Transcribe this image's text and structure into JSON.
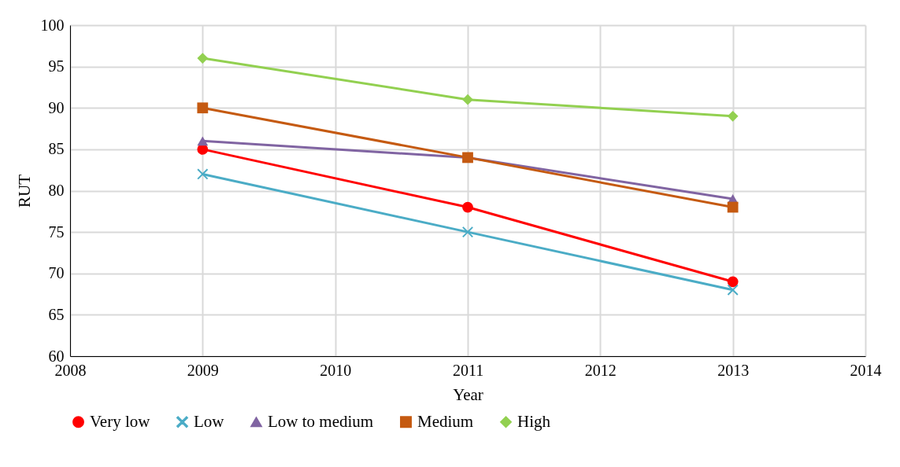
{
  "chart_data": {
    "type": "line",
    "xlabel": "Year",
    "ylabel": "RUT",
    "x": [
      2009,
      2011,
      2013
    ],
    "xlim": [
      2008,
      2014
    ],
    "xticks": [
      2008,
      2009,
      2010,
      2011,
      2012,
      2013,
      2014
    ],
    "ylim": [
      60,
      100
    ],
    "yticks": [
      60,
      65,
      70,
      75,
      80,
      85,
      90,
      95,
      100
    ],
    "grid": true,
    "legend": "bottom",
    "series": [
      {
        "name": "Very low",
        "color": "#ff0000",
        "marker": "circle",
        "values": [
          85,
          78,
          69
        ]
      },
      {
        "name": "Low",
        "color": "#4bacc6",
        "marker": "cross",
        "values": [
          82,
          75,
          68
        ]
      },
      {
        "name": "Low to medium",
        "color": "#8064a2",
        "marker": "triangle",
        "values": [
          86,
          84,
          79
        ]
      },
      {
        "name": "Medium",
        "color": "#c55a11",
        "marker": "square",
        "values": [
          90,
          84,
          78
        ]
      },
      {
        "name": "High",
        "color": "#92d050",
        "marker": "diamond",
        "values": [
          96,
          91,
          89
        ]
      }
    ]
  }
}
